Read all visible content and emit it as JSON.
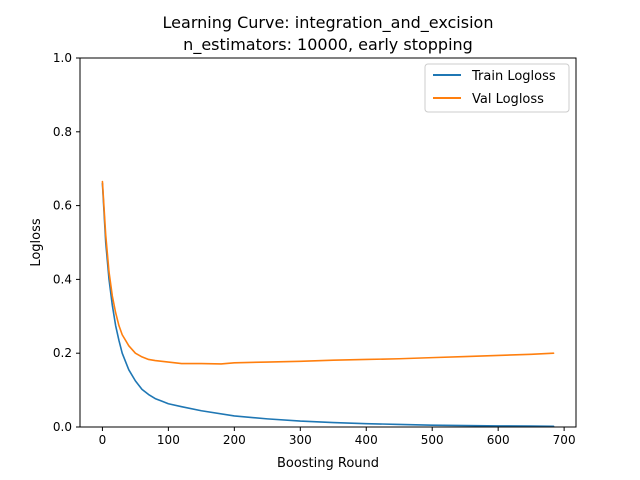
{
  "chart_data": {
    "type": "line",
    "title": "Learning Curve: integration_and_excision",
    "subtitle": "n_estimators: 10000, early stopping",
    "xlabel": "Boosting Round",
    "ylabel": "Logloss",
    "xlim": [
      -34,
      718
    ],
    "ylim": [
      0.0,
      1.0
    ],
    "xticks": [
      0,
      100,
      200,
      300,
      400,
      500,
      600,
      700
    ],
    "xtick_labels": [
      "0",
      "100",
      "200",
      "300",
      "400",
      "500",
      "600",
      "700"
    ],
    "yticks": [
      0.0,
      0.2,
      0.4,
      0.6,
      0.8,
      1.0
    ],
    "ytick_labels": [
      "0.0",
      "0.2",
      "0.4",
      "0.6",
      "0.8",
      "1.0"
    ],
    "grid": false,
    "legend": "upper right",
    "series": [
      {
        "name": "Train Logloss",
        "color": "#1f77b4",
        "x": [
          0,
          5,
          10,
          15,
          20,
          25,
          30,
          40,
          50,
          60,
          70,
          80,
          90,
          100,
          120,
          150,
          200,
          250,
          300,
          350,
          400,
          450,
          500,
          550,
          600,
          650,
          684
        ],
        "values": [
          0.66,
          0.5,
          0.4,
          0.33,
          0.275,
          0.235,
          0.2,
          0.155,
          0.125,
          0.102,
          0.088,
          0.077,
          0.07,
          0.063,
          0.055,
          0.044,
          0.03,
          0.022,
          0.016,
          0.012,
          0.009,
          0.007,
          0.005,
          0.004,
          0.003,
          0.0025,
          0.002
        ]
      },
      {
        "name": "Val Logloss",
        "color": "#ff7f0e",
        "x": [
          0,
          5,
          10,
          15,
          20,
          25,
          30,
          40,
          50,
          60,
          70,
          80,
          90,
          100,
          120,
          150,
          180,
          200,
          250,
          300,
          350,
          400,
          450,
          500,
          550,
          600,
          650,
          684
        ],
        "values": [
          0.665,
          0.52,
          0.42,
          0.355,
          0.31,
          0.275,
          0.25,
          0.22,
          0.2,
          0.19,
          0.183,
          0.18,
          0.178,
          0.176,
          0.172,
          0.172,
          0.171,
          0.174,
          0.176,
          0.178,
          0.181,
          0.183,
          0.185,
          0.188,
          0.191,
          0.194,
          0.197,
          0.2
        ]
      }
    ]
  }
}
